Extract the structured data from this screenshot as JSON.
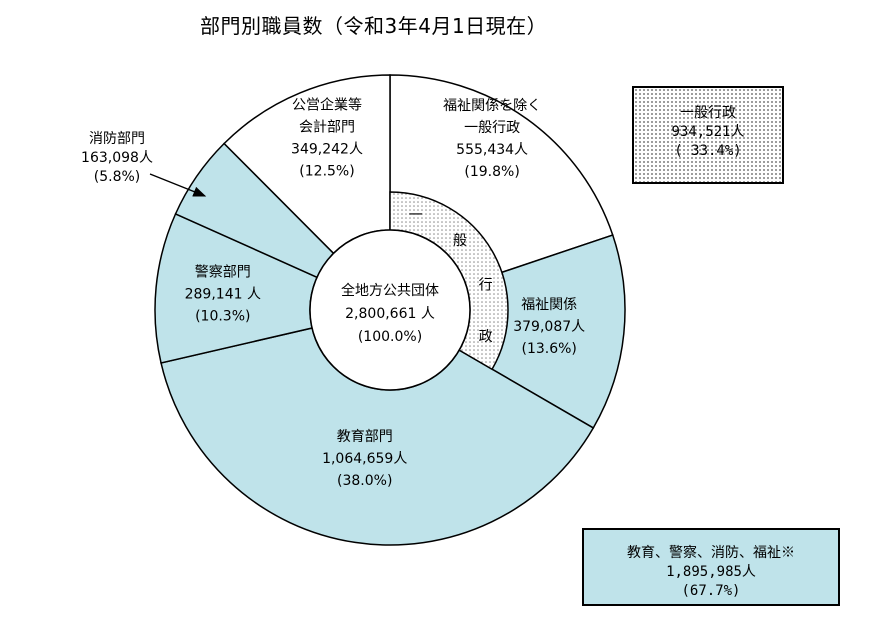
{
  "title": "部門別職員数（令和3年4月1日現在）",
  "colors": {
    "blue_segment": "#bfe3ea",
    "white_segment": "#ffffff",
    "stroke": "#000000",
    "dots": "#8a8a8a"
  },
  "chart_data": {
    "type": "pie",
    "subtype": "donut",
    "title": "部門別職員数（令和3年4月1日現在）",
    "total": {
      "label": "全地方公共団体",
      "value": "2,800,661 人",
      "percent": "(100.0%)"
    },
    "slices": [
      {
        "name": "福祉関係を除く一般行政",
        "lines": [
          "福祉関係を除く",
          "一般行政"
        ],
        "value": 555434,
        "value_text": "555,434人",
        "percent_text": "(19.8%)",
        "color": "#ffffff"
      },
      {
        "name": "福祉関係",
        "lines": [
          "福祉関係"
        ],
        "value": 379087,
        "value_text": "379,087人",
        "percent_text": "(13.6%)",
        "color": "#bfe3ea"
      },
      {
        "name": "教育部門",
        "lines": [
          "教育部門"
        ],
        "value": 1064659,
        "value_text": "1,064,659人",
        "percent_text": "(38.0%)",
        "color": "#bfe3ea"
      },
      {
        "name": "警察部門",
        "lines": [
          "警察部門"
        ],
        "value": 289141,
        "value_text": "289,141 人",
        "percent_text": "(10.3%)",
        "color": "#bfe3ea"
      },
      {
        "name": "消防部門",
        "lines": [
          "消防部門"
        ],
        "value": 163098,
        "value_text": "163,098人",
        "percent_text": "(5.8%)",
        "color": "#bfe3ea"
      },
      {
        "name": "公営企業等会計部門",
        "lines": [
          "公営企業等",
          "会計部門"
        ],
        "value": 349242,
        "value_text": "349,242人",
        "percent_text": "(12.5%)",
        "color": "#ffffff"
      }
    ],
    "inner_arc": {
      "label_chars": [
        "一",
        "般",
        "行",
        "政"
      ],
      "pattern": "dotted"
    },
    "summary_boxes": [
      {
        "lines": [
          "一般行政",
          "934,521人",
          "( 33.4%)"
        ]
      },
      {
        "lines": [
          "教育、警察、消防、福祉※",
          "1,895,985人",
          "(67.7%)"
        ]
      }
    ]
  }
}
